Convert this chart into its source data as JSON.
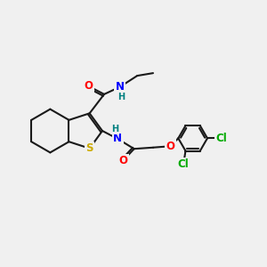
{
  "bg_color": "#f0f0f0",
  "bond_color": "#1a1a1a",
  "bond_width": 1.5,
  "atom_colors": {
    "O": "#ff0000",
    "N": "#0000ff",
    "S": "#ccaa00",
    "Cl": "#00aa00",
    "H": "#008080",
    "C": "#1a1a1a"
  },
  "font_size_atom": 8.5,
  "font_size_small": 7.0,
  "figsize": [
    3.0,
    3.0
  ],
  "dpi": 100
}
